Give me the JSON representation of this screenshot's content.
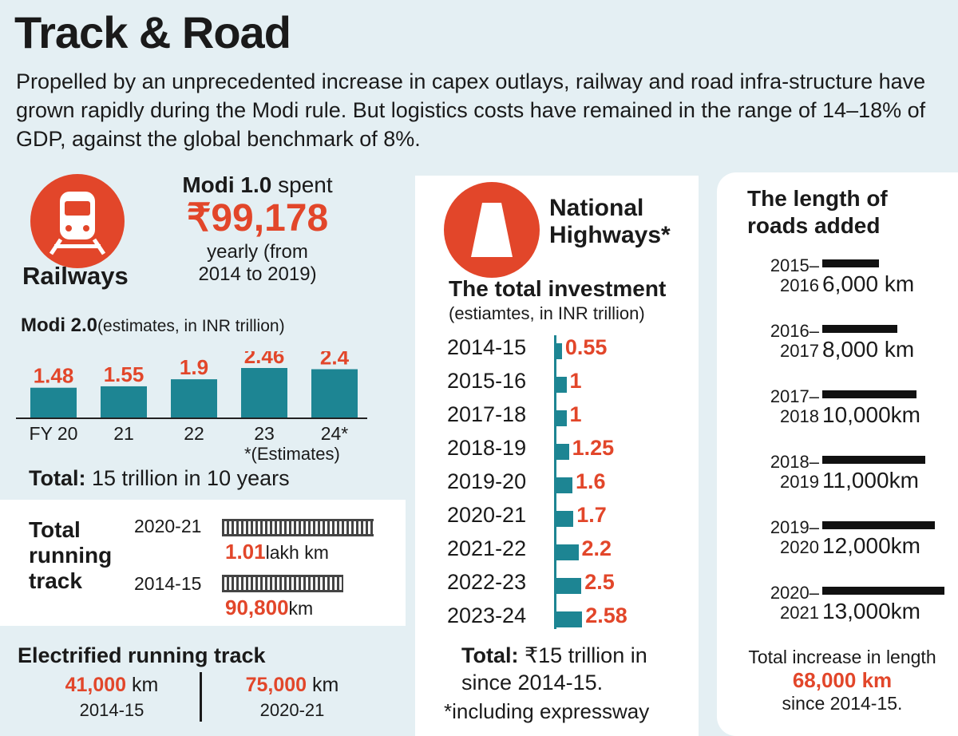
{
  "title": "Track & Road",
  "intro": "Propelled by an unprecedented increase in capex outlays, railway and road infra-structure have grown rapidly during the Modi rule. But logistics costs have remained in the range of 14–18% of GDP, against the global benchmark of 8%.",
  "railways": {
    "label": "Railways",
    "modi1_prefix": "Modi 1.0",
    "modi1_suffix": " spent",
    "amount": "₹99,178",
    "amount_note": "yearly (from 2014 to 2019)",
    "modi2_prefix": "Modi 2.0",
    "modi2_suffix": "(estimates, in INR trillion)",
    "total_label": "Total:",
    "total_text": " 15 trillion in 10 years",
    "estimate_note": "*(Estimates)"
  },
  "running_track": {
    "label": "Total running track",
    "rows": [
      {
        "year": "2020-21",
        "value": "1.01",
        "unit": "lakh km"
      },
      {
        "year": "2014-15",
        "value": "90,800",
        "unit": "km"
      }
    ]
  },
  "electrified": {
    "label": "Electrified running track",
    "items": [
      {
        "value": "41,000",
        "unit": " km",
        "year": "2014-15"
      },
      {
        "value": "75,000",
        "unit": " km",
        "year": "2020-21"
      }
    ]
  },
  "highways": {
    "label": "National Highways*",
    "investment_title": "The total investment",
    "investment_note": "(estiamtes, in INR trillion)",
    "total_label": "Total:",
    "total_text": " ₹15 trillion in since 2014-15.",
    "footnote": "*including expressway"
  },
  "roads": {
    "title": "The length of roads added",
    "total_label": "Total increase in length",
    "total_value": "68,000 km",
    "total_since": "since 2014-15."
  },
  "colors": {
    "accent": "#e2462a",
    "bar": "#1d8593",
    "background": "#e4eff3",
    "road_bar": "#111111"
  },
  "chart_data": [
    {
      "type": "bar",
      "title": "Modi 2.0",
      "categories": [
        "FY 20",
        "21",
        "22",
        "23",
        "24*"
      ],
      "values": [
        1.48,
        1.55,
        1.9,
        2.46,
        2.4
      ],
      "value_labels": [
        "1.48",
        "1.55",
        "1.9",
        "2.46",
        "2.4"
      ],
      "ylim": [
        0,
        2.6
      ]
    },
    {
      "type": "bar",
      "orientation": "horizontal",
      "title": "The total investment",
      "categories": [
        "2014-15",
        "2015-16",
        "2017-18",
        "2018-19",
        "2019-20",
        "2020-21",
        "2021-22",
        "2022-23",
        "2023-24"
      ],
      "values": [
        0.55,
        1,
        1,
        1.25,
        1.6,
        1.7,
        2.2,
        2.5,
        2.58
      ],
      "value_labels": [
        "0.55",
        "1",
        "1",
        "1.25",
        "1.6",
        "1.7",
        "2.2",
        "2.5",
        "2.58"
      ]
    },
    {
      "type": "bar",
      "orientation": "horizontal",
      "title": "The length of roads added",
      "categories": [
        "2015–2016",
        "2016–2017",
        "2017–2018",
        "2018–2019",
        "2019–2020",
        "2020–2021"
      ],
      "year_lines": [
        [
          "2015–",
          "2016"
        ],
        [
          "2016–",
          "2017"
        ],
        [
          "2017–",
          "2018"
        ],
        [
          "2018–",
          "2019"
        ],
        [
          "2019–",
          "2020"
        ],
        [
          "2020–",
          "2021"
        ]
      ],
      "values": [
        6000,
        8000,
        10000,
        11000,
        12000,
        13000
      ],
      "value_labels": [
        "6,000 km",
        "8,000 km",
        "10,000km",
        "11,000km",
        "12,000km",
        "13,000km"
      ]
    }
  ]
}
